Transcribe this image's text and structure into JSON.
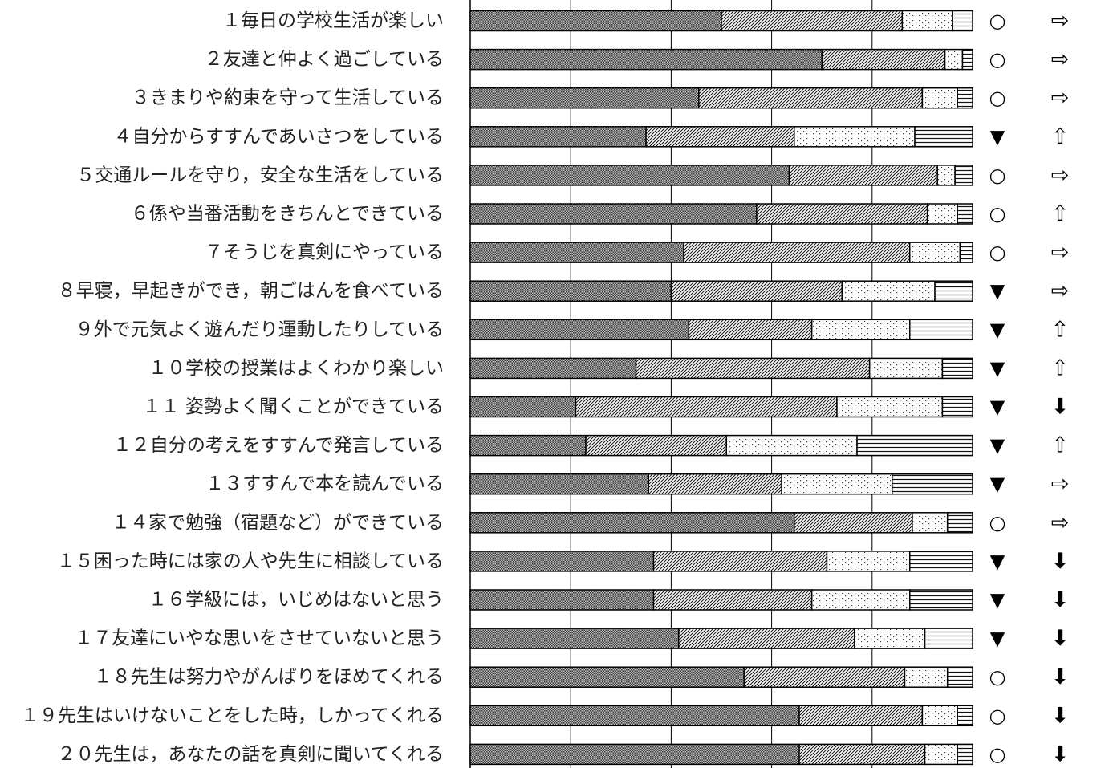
{
  "chart_data": {
    "type": "bar",
    "orientation": "horizontal",
    "stacked": true,
    "percent_stacked": true,
    "xlim": [
      0,
      100
    ],
    "grid": true,
    "categories": [
      "１毎日の学校生活が楽しい",
      "２友達と仲よく過ごしている",
      "３きまりや約束を守って生活している",
      "４自分からすすんであいさつをしている",
      "５交通ルールを守り，安全な生活をしている",
      "６係や当番活動をきちんとできている",
      "７そうじを真剣にやっている",
      "８早寝，早起きができ，朝ごはんを食べている",
      "９外で元気よく遊んだり運動したりしている",
      "１０学校の授業はよくわかり楽しい",
      "１１ 姿勢よく聞くことができている",
      "１２自分の考えをすすんで発言している",
      "１３すすんで本を読んでいる",
      "１４家で勉強（宿題など）ができている",
      "１５困った時には家の人や先生に相談している",
      "１６学級には，いじめはないと思う",
      "１７友達にいやな思いをさせていないと思う",
      "１８先生は努力やがんばりをほめてくれる",
      "１９先生はいけないことをした時，しかってくれる",
      "２０先生は，あなたの話を真剣に聞いてくれる"
    ],
    "series": [
      {
        "pattern": "dense-dots",
        "values": [
          50,
          70,
          45.5,
          35,
          63.5,
          57,
          42.5,
          40,
          43.5,
          33,
          21,
          23,
          35.5,
          64.5,
          36.5,
          36.5,
          41.5,
          54.5,
          65.5,
          65.5
        ]
      },
      {
        "pattern": "diagonal",
        "values": [
          36,
          24.5,
          44.5,
          29.5,
          29.5,
          34,
          45,
          34,
          24.5,
          46.5,
          52,
          28,
          26.5,
          23.5,
          34.5,
          31.5,
          35,
          32,
          24.5,
          25
        ]
      },
      {
        "pattern": "sparse-dots",
        "values": [
          10,
          3.5,
          7,
          24,
          3.5,
          6,
          10,
          18.5,
          19.5,
          14.5,
          21,
          26,
          22,
          7,
          16.5,
          19.5,
          14,
          8.5,
          7,
          6.5
        ]
      },
      {
        "pattern": "horizontal-lines",
        "values": [
          4,
          2,
          3,
          11.5,
          3.5,
          3,
          2.5,
          7.5,
          12.5,
          6,
          6,
          23,
          16,
          5,
          12.5,
          12.5,
          9.5,
          5,
          3,
          3
        ]
      }
    ],
    "marks": [
      "○",
      "○",
      "○",
      "▼",
      "○",
      "○",
      "○",
      "▼",
      "▼",
      "▼",
      "▼",
      "▼",
      "▼",
      "○",
      "▼",
      "▼",
      "▼",
      "○",
      "○",
      "○"
    ],
    "arrows": [
      "⇨",
      "⇨",
      "⇨",
      "⇧",
      "⇨",
      "⇧",
      "⇨",
      "⇨",
      "⇧",
      "⇧",
      "⬇",
      "⇧",
      "⇨",
      "⇨",
      "⬇",
      "⬇",
      "⬇",
      "⬇",
      "⬇",
      "⬇"
    ]
  }
}
